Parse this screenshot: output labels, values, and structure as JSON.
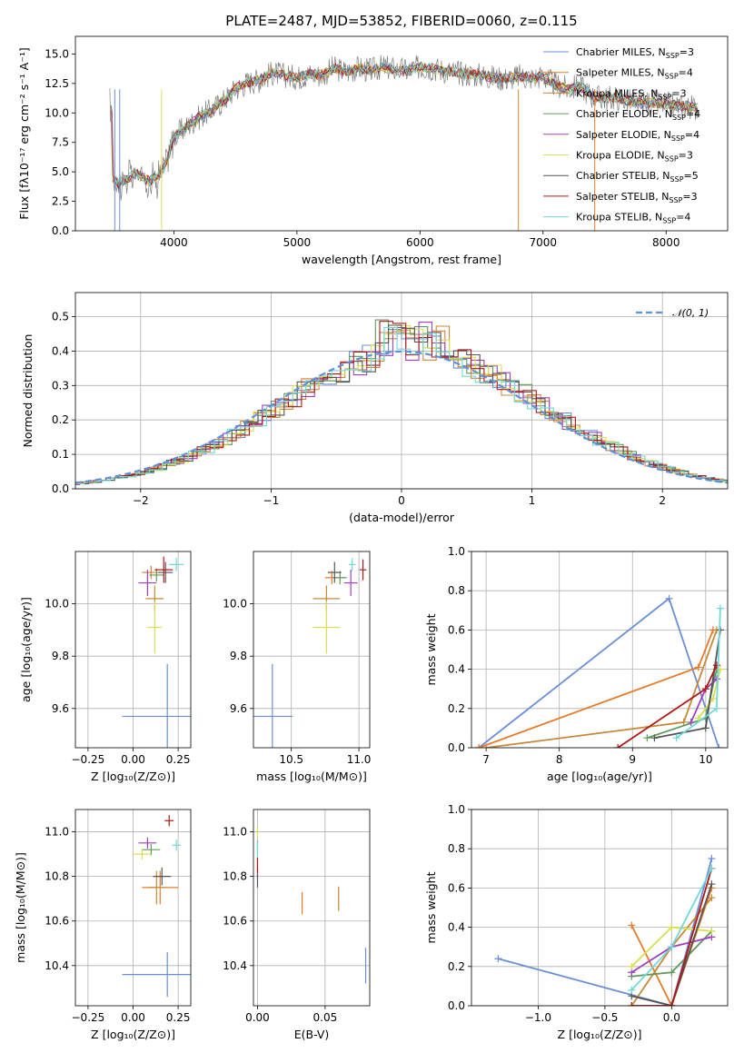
{
  "chart_data": [
    {
      "id": "spectrum",
      "type": "line",
      "title": "PLATE=2487, MJD=53852, FIBERID=0060, z=0.115",
      "xlabel": "wavelength [Angstrom, rest frame]",
      "ylabel": "Flux [fλ10⁻¹⁷ erg cm⁻² s⁻¹ A⁻¹]",
      "xlim": [
        3200,
        8500
      ],
      "ylim": [
        0,
        16.5
      ],
      "xticks": [
        4000,
        5000,
        6000,
        7000,
        8000
      ],
      "yticks": [
        0.0,
        2.5,
        5.0,
        7.5,
        10.0,
        12.5,
        15.0
      ],
      "grid": false,
      "legend_position": "right",
      "profile": [
        [
          3500,
          4.4
        ],
        [
          3550,
          4.0
        ],
        [
          3650,
          4.6
        ],
        [
          3700,
          4.8
        ],
        [
          3800,
          4.2
        ],
        [
          3900,
          5.0
        ],
        [
          3950,
          6.0
        ],
        [
          4000,
          8.0
        ],
        [
          4100,
          8.8
        ],
        [
          4200,
          9.6
        ],
        [
          4300,
          10.2
        ],
        [
          4400,
          11.0
        ],
        [
          4500,
          12.0
        ],
        [
          4600,
          12.6
        ],
        [
          4700,
          12.8
        ],
        [
          4800,
          13.4
        ],
        [
          4900,
          13.2
        ],
        [
          5000,
          13.0
        ],
        [
          5100,
          13.3
        ],
        [
          5200,
          13.2
        ],
        [
          5300,
          13.8
        ],
        [
          5400,
          13.5
        ],
        [
          5500,
          13.8
        ],
        [
          5600,
          13.6
        ],
        [
          5700,
          13.9
        ],
        [
          5800,
          13.7
        ],
        [
          5900,
          13.6
        ],
        [
          6000,
          13.9
        ],
        [
          6100,
          13.8
        ],
        [
          6200,
          13.6
        ],
        [
          6300,
          13.4
        ],
        [
          6400,
          13.3
        ],
        [
          6500,
          13.2
        ],
        [
          6600,
          13.0
        ],
        [
          6700,
          12.9
        ],
        [
          6800,
          13.1
        ],
        [
          6900,
          13.0
        ],
        [
          7000,
          13.1
        ],
        [
          7100,
          12.4
        ],
        [
          7200,
          12.0
        ],
        [
          7300,
          12.3
        ],
        [
          7400,
          11.4
        ],
        [
          7500,
          11.2
        ],
        [
          7600,
          11.3
        ],
        [
          7700,
          11.0
        ],
        [
          7800,
          10.8
        ],
        [
          7900,
          10.9
        ],
        [
          8000,
          10.7
        ],
        [
          8100,
          10.6
        ],
        [
          8200,
          10.5
        ],
        [
          8260,
          10.4
        ]
      ],
      "series": [
        {
          "label": "Chabrier MILES, N",
          "sub": "SSP",
          "suffix": "=3",
          "color": "#6a8fd8"
        },
        {
          "label": "Salpeter MILES, N",
          "sub": "SSP",
          "suffix": "=4",
          "color": "#e67a28"
        },
        {
          "label": "Kroupa MILES, N",
          "sub": "SSP",
          "suffix": "=3",
          "color": "#c88838"
        },
        {
          "label": "Chabrier ELODIE, N",
          "sub": "SSP",
          "suffix": "=4",
          "color": "#5e9a5e"
        },
        {
          "label": "Salpeter ELODIE, N",
          "sub": "SSP",
          "suffix": "=4",
          "color": "#a040c0"
        },
        {
          "label": "Kroupa ELODIE, N",
          "sub": "SSP",
          "suffix": "=3",
          "color": "#d8e050"
        },
        {
          "label": "Chabrier STELIB, N",
          "sub": "SSP",
          "suffix": "=5",
          "color": "#555555"
        },
        {
          "label": "Salpeter STELIB, N",
          "sub": "SSP",
          "suffix": "=3",
          "color": "#b01818"
        },
        {
          "label": "Kroupa STELIB, N",
          "sub": "SSP",
          "suffix": "=4",
          "color": "#70d8d8"
        }
      ]
    },
    {
      "id": "residuals",
      "type": "bar",
      "xlabel": "(data-model)/error",
      "ylabel": "Normed distribution",
      "xlim": [
        -2.5,
        2.5
      ],
      "ylim": [
        0,
        0.57
      ],
      "xticks": [
        -2,
        -1,
        0,
        1,
        2
      ],
      "yticks": [
        0.0,
        0.1,
        0.2,
        0.3,
        0.4,
        0.5
      ],
      "grid": true,
      "legend_position": "top-right",
      "reference_label": "𝒩(0, 1)",
      "reference_color": "#6090d8",
      "bin_width": 0.1
    },
    {
      "id": "z-age",
      "type": "scatter",
      "xlabel": "Z [log₁₀(Z/Z⊙)]",
      "ylabel": "age  [log₁₀(age/yr)]",
      "xlim": [
        -0.32,
        0.32
      ],
      "ylim": [
        9.45,
        10.2
      ],
      "xticks": [
        -0.25,
        0.0,
        0.25
      ],
      "yticks": [
        9.6,
        9.8,
        10.0
      ],
      "points": [
        [
          0.19,
          9.57,
          0.5,
          0.4
        ],
        [
          0.1,
          10.12,
          0.1,
          0.05
        ],
        [
          0.12,
          10.02,
          0.1,
          0.1
        ],
        [
          0.13,
          10.11,
          0.08,
          0.05
        ],
        [
          0.08,
          10.08,
          0.1,
          0.1
        ],
        [
          0.12,
          9.91,
          0.08,
          0.2
        ],
        [
          0.18,
          10.12,
          0.08,
          0.08
        ],
        [
          0.17,
          10.13,
          0.1,
          0.1
        ],
        [
          0.24,
          10.15,
          0.08,
          0.05
        ]
      ]
    },
    {
      "id": "mass-age",
      "type": "scatter",
      "xlabel": "mass [log₁₀(M/M⊙)]",
      "ylabel": "",
      "xlim": [
        10.22,
        11.08
      ],
      "ylim": [
        9.45,
        10.2
      ],
      "xticks": [
        10.5,
        11.0
      ],
      "yticks": [
        9.6,
        9.8,
        10.0
      ],
      "points": [
        [
          10.36,
          9.57,
          0.3,
          0.4
        ],
        [
          10.8,
          10.1,
          0.1,
          0.05
        ],
        [
          10.76,
          10.02,
          0.2,
          0.1
        ],
        [
          10.86,
          10.1,
          0.1,
          0.05
        ],
        [
          10.94,
          10.08,
          0.1,
          0.1
        ],
        [
          10.76,
          9.91,
          0.2,
          0.2
        ],
        [
          10.82,
          10.12,
          0.1,
          0.08
        ],
        [
          11.03,
          10.13,
          0.05,
          0.08
        ],
        [
          10.95,
          10.15,
          0.05,
          0.05
        ]
      ]
    },
    {
      "id": "age-weight",
      "type": "line",
      "xlabel": "age  [log₁₀(age/yr)]",
      "ylabel": "mass weight",
      "xlim": [
        6.8,
        10.3
      ],
      "ylim": [
        0,
        1.0
      ],
      "xticks": [
        7,
        8,
        9,
        10
      ],
      "yticks": [
        0.0,
        0.2,
        0.4,
        0.6,
        0.8,
        1.0
      ],
      "series_points": [
        [
          [
            6.9,
            0.0
          ],
          [
            9.5,
            0.76
          ],
          [
            10.18,
            0.0
          ]
        ],
        [
          [
            6.9,
            0.0
          ],
          [
            9.9,
            0.41
          ],
          [
            10.1,
            0.6
          ]
        ],
        [
          [
            7.0,
            0.0
          ],
          [
            9.7,
            0.13
          ],
          [
            10.15,
            0.6
          ]
        ],
        [
          [
            9.2,
            0.05
          ],
          [
            10.0,
            0.15
          ],
          [
            10.15,
            0.4
          ]
        ],
        [
          [
            9.8,
            0.13
          ],
          [
            10.0,
            0.3
          ],
          [
            10.15,
            0.35
          ]
        ],
        [
          [
            9.9,
            0.15
          ],
          [
            10.1,
            0.25
          ],
          [
            10.2,
            0.4
          ]
        ],
        [
          [
            9.3,
            0.05
          ],
          [
            10.0,
            0.1
          ],
          [
            10.2,
            0.6
          ]
        ],
        [
          [
            8.8,
            0.0
          ],
          [
            10.0,
            0.3
          ],
          [
            10.15,
            0.42
          ]
        ],
        [
          [
            9.6,
            0.05
          ],
          [
            10.15,
            0.2
          ],
          [
            10.2,
            0.71
          ]
        ]
      ]
    },
    {
      "id": "z-mass",
      "type": "scatter",
      "xlabel": "Z [log₁₀(Z/Z⊙)]",
      "ylabel": "mass [log₁₀(M/M⊙)]",
      "xlim": [
        -0.32,
        0.32
      ],
      "ylim": [
        10.22,
        11.1
      ],
      "xticks": [
        -0.25,
        0.0,
        0.25
      ],
      "yticks": [
        10.4,
        10.6,
        10.8,
        11.0
      ],
      "points": [
        [
          0.19,
          10.36,
          0.5,
          0.2
        ],
        [
          0.15,
          10.75,
          0.2,
          0.15
        ],
        [
          0.13,
          10.75,
          0.1,
          0.15
        ],
        [
          0.1,
          10.92,
          0.1,
          0.05
        ],
        [
          0.08,
          10.95,
          0.1,
          0.05
        ],
        [
          0.05,
          10.9,
          0.1,
          0.05
        ],
        [
          0.16,
          10.8,
          0.1,
          0.08
        ],
        [
          0.2,
          11.05,
          0.05,
          0.05
        ],
        [
          0.24,
          10.94,
          0.05,
          0.05
        ]
      ]
    },
    {
      "id": "ebv-mass",
      "type": "scatter",
      "xlabel": "E(B-V)",
      "ylabel": "",
      "xlim": [
        -0.003,
        0.083
      ],
      "ylim": [
        10.22,
        11.1
      ],
      "xticks": [
        0.0,
        0.05
      ],
      "yticks": [
        10.4,
        10.6,
        10.8,
        11.0
      ],
      "points": [
        [
          0.08,
          10.4,
          0,
          0.16
        ],
        [
          0.033,
          10.68,
          0,
          0.1
        ],
        [
          0.06,
          10.7,
          0,
          0.11
        ],
        [
          0.0,
          10.93,
          0,
          0.06
        ],
        [
          0.0,
          10.82,
          0,
          0.05
        ],
        [
          0.0,
          11.0,
          0,
          0.05
        ],
        [
          0.0,
          10.78,
          0,
          0.06
        ],
        [
          0.0,
          10.85,
          0,
          0.07
        ],
        [
          0.0,
          10.92,
          0,
          0.07
        ]
      ]
    },
    {
      "id": "z-weight",
      "type": "line",
      "xlabel": "Z [log₁₀(Z/Z⊙)]",
      "ylabel": "mass weight",
      "xlim": [
        -1.5,
        0.42
      ],
      "ylim": [
        0,
        1.0
      ],
      "xticks": [
        -1.0,
        -0.5,
        0.0
      ],
      "yticks": [
        0.0,
        0.2,
        0.4,
        0.6,
        0.8,
        1.0
      ],
      "series_points": [
        [
          [
            -1.3,
            0.24
          ],
          [
            0.0,
            0.0
          ],
          [
            0.3,
            0.75
          ]
        ],
        [
          [
            -0.3,
            0.41
          ],
          [
            0.0,
            0.0
          ],
          [
            0.3,
            0.6
          ]
        ],
        [
          [
            -0.3,
            0.0
          ],
          [
            0.0,
            0.3
          ],
          [
            0.3,
            0.55
          ]
        ],
        [
          [
            -0.3,
            0.15
          ],
          [
            0.0,
            0.17
          ],
          [
            0.3,
            0.38
          ]
        ],
        [
          [
            -0.3,
            0.17
          ],
          [
            0.0,
            0.3
          ],
          [
            0.3,
            0.35
          ]
        ],
        [
          [
            -0.3,
            0.2
          ],
          [
            0.0,
            0.4
          ],
          [
            0.3,
            0.38
          ]
        ],
        [
          [
            -0.3,
            0.05
          ],
          [
            0.0,
            0.0
          ],
          [
            0.3,
            0.62
          ]
        ],
        [
          [
            -0.3,
            0.0
          ],
          [
            0.0,
            0.0
          ],
          [
            0.3,
            0.7
          ]
        ],
        [
          [
            -0.3,
            0.08
          ],
          [
            0.0,
            0.3
          ],
          [
            0.3,
            0.7
          ]
        ]
      ]
    }
  ]
}
